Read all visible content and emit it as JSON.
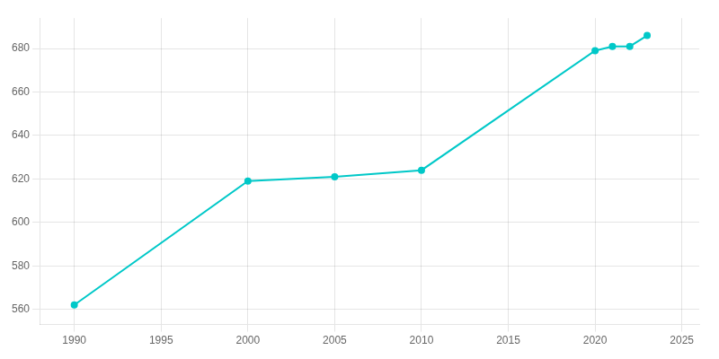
{
  "chart_data": {
    "type": "line",
    "x": [
      1990,
      2000,
      2005,
      2010,
      2020,
      2021,
      2022,
      2023
    ],
    "values": [
      562,
      619,
      621,
      624,
      679,
      681,
      681,
      686
    ],
    "color": "#00C8C8",
    "marker": "circle",
    "xlim": [
      1988,
      2026
    ],
    "ylim": [
      553,
      694
    ],
    "xticks": [
      1990,
      1995,
      2000,
      2005,
      2010,
      2015,
      2020,
      2025
    ],
    "yticks": [
      560,
      580,
      600,
      620,
      640,
      660,
      680
    ],
    "grid": true
  }
}
